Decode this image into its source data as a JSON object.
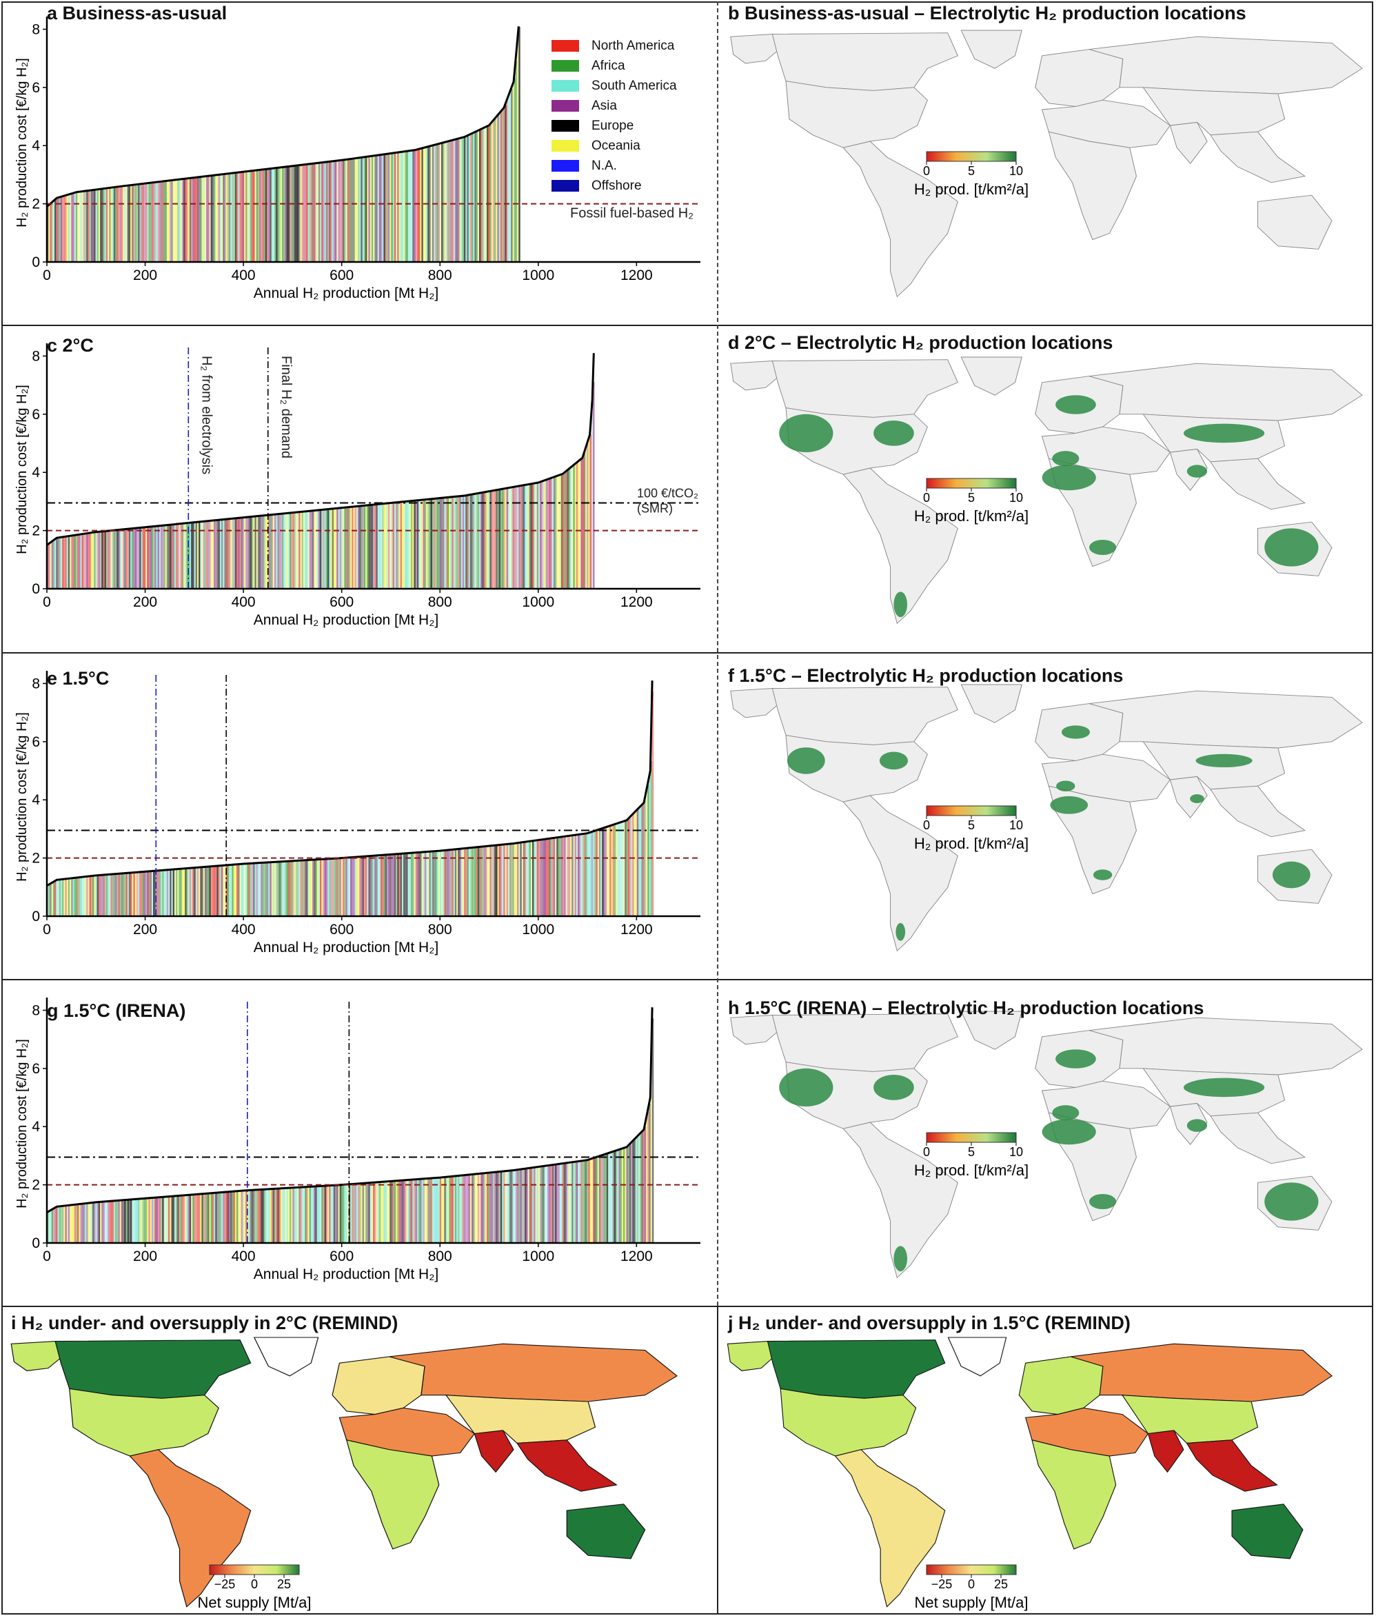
{
  "colors": {
    "region": {
      "North America": "#e8251b",
      "Africa": "#2e9a2e",
      "South America": "#6fe8d6",
      "Asia": "#8e2a8e",
      "Europe": "#000000",
      "Oceania": "#f2f23a",
      "N.A.": "#1a1aff",
      "Offshore": "#0a0aa8"
    },
    "fossil_line": "#8b1a1a",
    "carbon_line": "#000000",
    "electrolysis_line": "#1a1acc",
    "land": "#eeeeee",
    "border": "#888888",
    "prod_scale": [
      "#d7191c",
      "#f5b041",
      "#b8e186",
      "#1a7837"
    ],
    "net_scale": [
      "#c51b1b",
      "#f08a4b",
      "#f4e38a",
      "#c7ea6a",
      "#1f7a3a"
    ]
  },
  "legend": {
    "entries": [
      "North America",
      "Africa",
      "South America",
      "Asia",
      "Europe",
      "Oceania",
      "N.A.",
      "Offshore"
    ]
  },
  "chart_data": [
    {
      "id": "a",
      "type": "area",
      "title": "a Business-as-usual",
      "xlabel": "Annual H₂ production [Mt H₂]",
      "ylabel": "H₂ production cost [€/kg H₂]",
      "xlim": [
        0,
        1330
      ],
      "ylim": [
        0,
        8.2
      ],
      "xticks": [
        0,
        200,
        400,
        600,
        800,
        1000,
        1200
      ],
      "yticks": [
        0,
        2,
        4,
        6,
        8
      ],
      "curve": [
        [
          0,
          1.9
        ],
        [
          20,
          2.2
        ],
        [
          60,
          2.4
        ],
        [
          150,
          2.6
        ],
        [
          300,
          2.9
        ],
        [
          450,
          3.2
        ],
        [
          600,
          3.5
        ],
        [
          750,
          3.85
        ],
        [
          850,
          4.3
        ],
        [
          900,
          4.7
        ],
        [
          930,
          5.3
        ],
        [
          950,
          6.2
        ],
        [
          960,
          8.1
        ]
      ],
      "hlines": [
        {
          "y": 2.0,
          "kind": "fossil",
          "label": "Fossil fuel-based H₂"
        }
      ],
      "vlines": []
    },
    {
      "id": "c",
      "type": "area",
      "title": "c 2°C",
      "xlabel": "Annual H₂ production [Mt H₂]",
      "ylabel": "H₂ production cost [€/kg H₂]",
      "xlim": [
        0,
        1330
      ],
      "ylim": [
        0,
        8.2
      ],
      "xticks": [
        0,
        200,
        400,
        600,
        800,
        1000,
        1200
      ],
      "yticks": [
        0,
        2,
        4,
        6,
        8
      ],
      "curve": [
        [
          0,
          1.5
        ],
        [
          20,
          1.75
        ],
        [
          100,
          1.95
        ],
        [
          250,
          2.2
        ],
        [
          400,
          2.45
        ],
        [
          550,
          2.7
        ],
        [
          700,
          2.95
        ],
        [
          850,
          3.2
        ],
        [
          1000,
          3.65
        ],
        [
          1050,
          3.95
        ],
        [
          1090,
          4.5
        ],
        [
          1105,
          5.3
        ],
        [
          1110,
          6.5
        ],
        [
          1113,
          8.1
        ]
      ],
      "hlines": [
        {
          "y": 2.0,
          "kind": "fossil",
          "label": ""
        },
        {
          "y": 2.95,
          "kind": "carbon",
          "label": "100 €/tCO₂ (SMR)"
        }
      ],
      "vlines": [
        {
          "x": 288,
          "kind": "electrolysis",
          "label": "H₂ from electrolysis"
        },
        {
          "x": 450,
          "kind": "demand",
          "label": "Final H₂ demand"
        }
      ]
    },
    {
      "id": "e",
      "type": "area",
      "title": "e 1.5°C",
      "xlabel": "Annual H₂ production [Mt H₂]",
      "ylabel": "H₂ production cost [€/kg H₂]",
      "xlim": [
        0,
        1330
      ],
      "ylim": [
        0,
        8.2
      ],
      "xticks": [
        0,
        200,
        400,
        600,
        800,
        1000,
        1200
      ],
      "yticks": [
        0,
        2,
        4,
        6,
        8
      ],
      "curve": [
        [
          0,
          1.05
        ],
        [
          20,
          1.25
        ],
        [
          100,
          1.4
        ],
        [
          250,
          1.6
        ],
        [
          400,
          1.8
        ],
        [
          600,
          2.0
        ],
        [
          800,
          2.25
        ],
        [
          950,
          2.5
        ],
        [
          1100,
          2.85
        ],
        [
          1180,
          3.3
        ],
        [
          1215,
          3.9
        ],
        [
          1228,
          5.0
        ],
        [
          1232,
          8.1
        ]
      ],
      "hlines": [
        {
          "y": 2.0,
          "kind": "fossil",
          "label": ""
        },
        {
          "y": 2.95,
          "kind": "carbon",
          "label": ""
        }
      ],
      "vlines": [
        {
          "x": 222,
          "kind": "electrolysis",
          "label": ""
        },
        {
          "x": 365,
          "kind": "demand",
          "label": ""
        }
      ]
    },
    {
      "id": "g",
      "type": "area",
      "title": "g 1.5°C (IRENA)",
      "xlabel": "Annual H₂ production [Mt H₂]",
      "ylabel": "H₂ production cost [€/kg H₂]",
      "xlim": [
        0,
        1330
      ],
      "ylim": [
        0,
        8.2
      ],
      "xticks": [
        0,
        200,
        400,
        600,
        800,
        1000,
        1200
      ],
      "yticks": [
        0,
        2,
        4,
        6,
        8
      ],
      "curve": [
        [
          0,
          1.05
        ],
        [
          20,
          1.25
        ],
        [
          100,
          1.4
        ],
        [
          250,
          1.6
        ],
        [
          400,
          1.8
        ],
        [
          600,
          2.0
        ],
        [
          800,
          2.25
        ],
        [
          950,
          2.5
        ],
        [
          1100,
          2.85
        ],
        [
          1180,
          3.3
        ],
        [
          1215,
          3.9
        ],
        [
          1228,
          5.0
        ],
        [
          1232,
          8.1
        ]
      ],
      "hlines": [
        {
          "y": 2.0,
          "kind": "fossil",
          "label": ""
        },
        {
          "y": 2.95,
          "kind": "carbon",
          "label": ""
        }
      ],
      "vlines": [
        {
          "x": 408,
          "kind": "electrolysis",
          "label": ""
        },
        {
          "x": 615,
          "kind": "demand",
          "label": ""
        }
      ]
    }
  ],
  "maps": [
    {
      "id": "b",
      "title": "b Business-as-usual – Electrolytic H₂ production locations",
      "colorbar": {
        "ticks": [
          "0",
          "5",
          "10"
        ],
        "label": "H₂ prod. [t/km²/a]"
      },
      "intensity": 0
    },
    {
      "id": "d",
      "title": "d 2°C – Electrolytic H₂ production locations",
      "colorbar": {
        "ticks": [
          "0",
          "5",
          "10"
        ],
        "label": "H₂ prod. [t/km²/a]"
      },
      "intensity": 1
    },
    {
      "id": "f",
      "title": "f 1.5°C – Electrolytic H₂ production locations",
      "colorbar": {
        "ticks": [
          "0",
          "5",
          "10"
        ],
        "label": "H₂ prod. [t/km²/a]"
      },
      "intensity": 0.7
    },
    {
      "id": "h",
      "title": "h 1.5°C (IRENA) – Electrolytic H₂ production locations",
      "colorbar": {
        "ticks": [
          "0",
          "5",
          "10"
        ],
        "label": "H₂ prod. [t/km²/a]"
      },
      "intensity": 1
    },
    {
      "id": "i",
      "title": "i H₂ under- and oversupply in 2°C (REMIND)",
      "colorbar": {
        "ticks": [
          "−25",
          "0",
          "25"
        ],
        "label": "Net supply [Mt/a]"
      },
      "regions": {
        "canada": 4,
        "usa": 3,
        "latam": 1,
        "europe": 2,
        "russia": 1,
        "mena": 0.5,
        "india": 0.3,
        "china": 2,
        "sea": 0.2,
        "africa": 3,
        "australia": 4,
        "alaska": 3
      }
    },
    {
      "id": "j",
      "title": "j H₂ under- and oversupply in 1.5°C (REMIND)",
      "colorbar": {
        "ticks": [
          "−25",
          "0",
          "25"
        ],
        "label": "Net supply [Mt/a]"
      },
      "regions": {
        "canada": 4,
        "usa": 3,
        "latam": 2,
        "europe": 2.5,
        "russia": 1,
        "mena": 1,
        "india": 0,
        "china": 2.6,
        "sea": 0.4,
        "africa": 2.6,
        "australia": 4,
        "alaska": 3
      }
    }
  ]
}
